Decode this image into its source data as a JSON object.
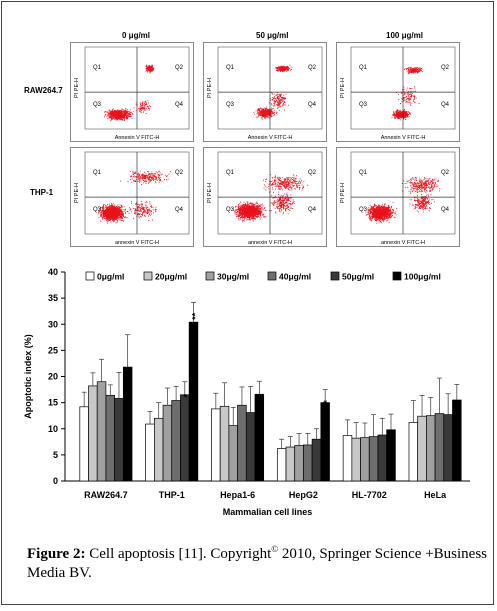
{
  "flow": {
    "columns": [
      "0 μg/ml",
      "50 μg/ml",
      "100 μg/ml"
    ],
    "rows": [
      {
        "label": "RAW264.7",
        "ylabel": "PI PE-H",
        "xlabel": "Annexin V FITC-H"
      },
      {
        "label": "THP-1",
        "ylabel": "PI PE-H",
        "xlabel": "annexin V FITC-H"
      }
    ],
    "quadrants": [
      "Q1",
      "Q2",
      "Q3",
      "Q4"
    ]
  },
  "chart_data": {
    "type": "bar",
    "ylabel": "Apoptotic index (%)",
    "xlabel": "Mammalian cell lines",
    "ylim": [
      0,
      40
    ],
    "yticks": [
      "0",
      "5",
      "10",
      "15",
      "20",
      "25",
      "30",
      "35",
      "40"
    ],
    "legend_position": "top",
    "categories": [
      "RAW264.7",
      "THP-1",
      "Hepa1-6",
      "HepG2",
      "HL-7702",
      "HeLa"
    ],
    "series": [
      {
        "name": "0μg/ml",
        "color": "#ffffff",
        "values": [
          14.2,
          10.9,
          13.8,
          6.2,
          8.7,
          11.2
        ],
        "errors": [
          2.8,
          2.4,
          3.0,
          1.8,
          3.0,
          4.2
        ]
      },
      {
        "name": "20μg/ml",
        "color": "#c8c8c8",
        "values": [
          18.2,
          12.0,
          14.3,
          6.5,
          8.2,
          12.4
        ],
        "errors": [
          2.5,
          3.0,
          4.5,
          2.0,
          3.0,
          4.0
        ]
      },
      {
        "name": "30μg/ml",
        "color": "#a0a0a0",
        "values": [
          19.0,
          14.5,
          10.6,
          6.8,
          8.3,
          12.5
        ],
        "errors": [
          4.3,
          3.3,
          3.5,
          2.3,
          2.8,
          3.5
        ]
      },
      {
        "name": "40μg/ml",
        "color": "#6e6e6e",
        "values": [
          16.4,
          15.4,
          14.5,
          6.9,
          8.5,
          12.9
        ],
        "errors": [
          2.0,
          2.7,
          3.5,
          2.2,
          4.2,
          6.8
        ]
      },
      {
        "name": "50μg/ml",
        "color": "#3a3a3a",
        "values": [
          15.8,
          16.5,
          13.1,
          8.0,
          8.8,
          12.7
        ],
        "errors": [
          5.0,
          2.5,
          5.0,
          2.0,
          3.2,
          4.0
        ]
      },
      {
        "name": "100μg/ml",
        "color": "#000000",
        "values": [
          21.8,
          30.4,
          16.6,
          15.0,
          9.8,
          15.5
        ],
        "errors": [
          6.2,
          3.8,
          2.5,
          2.5,
          3.0,
          3.0
        ]
      }
    ],
    "annotations": [
      {
        "category": "THP-1",
        "series": "50μg/ml",
        "text": "*"
      },
      {
        "category": "THP-1",
        "series": "100μg/ml",
        "text": "**"
      },
      {
        "category": "HepG2",
        "series": "100μg/ml",
        "text": "**"
      }
    ]
  },
  "caption": {
    "label": "Figure 2:",
    "text": "Cell apoptosis [11]. Copyright",
    "sup": "©",
    "rest": "2010, Springer Science +Business Media BV."
  }
}
